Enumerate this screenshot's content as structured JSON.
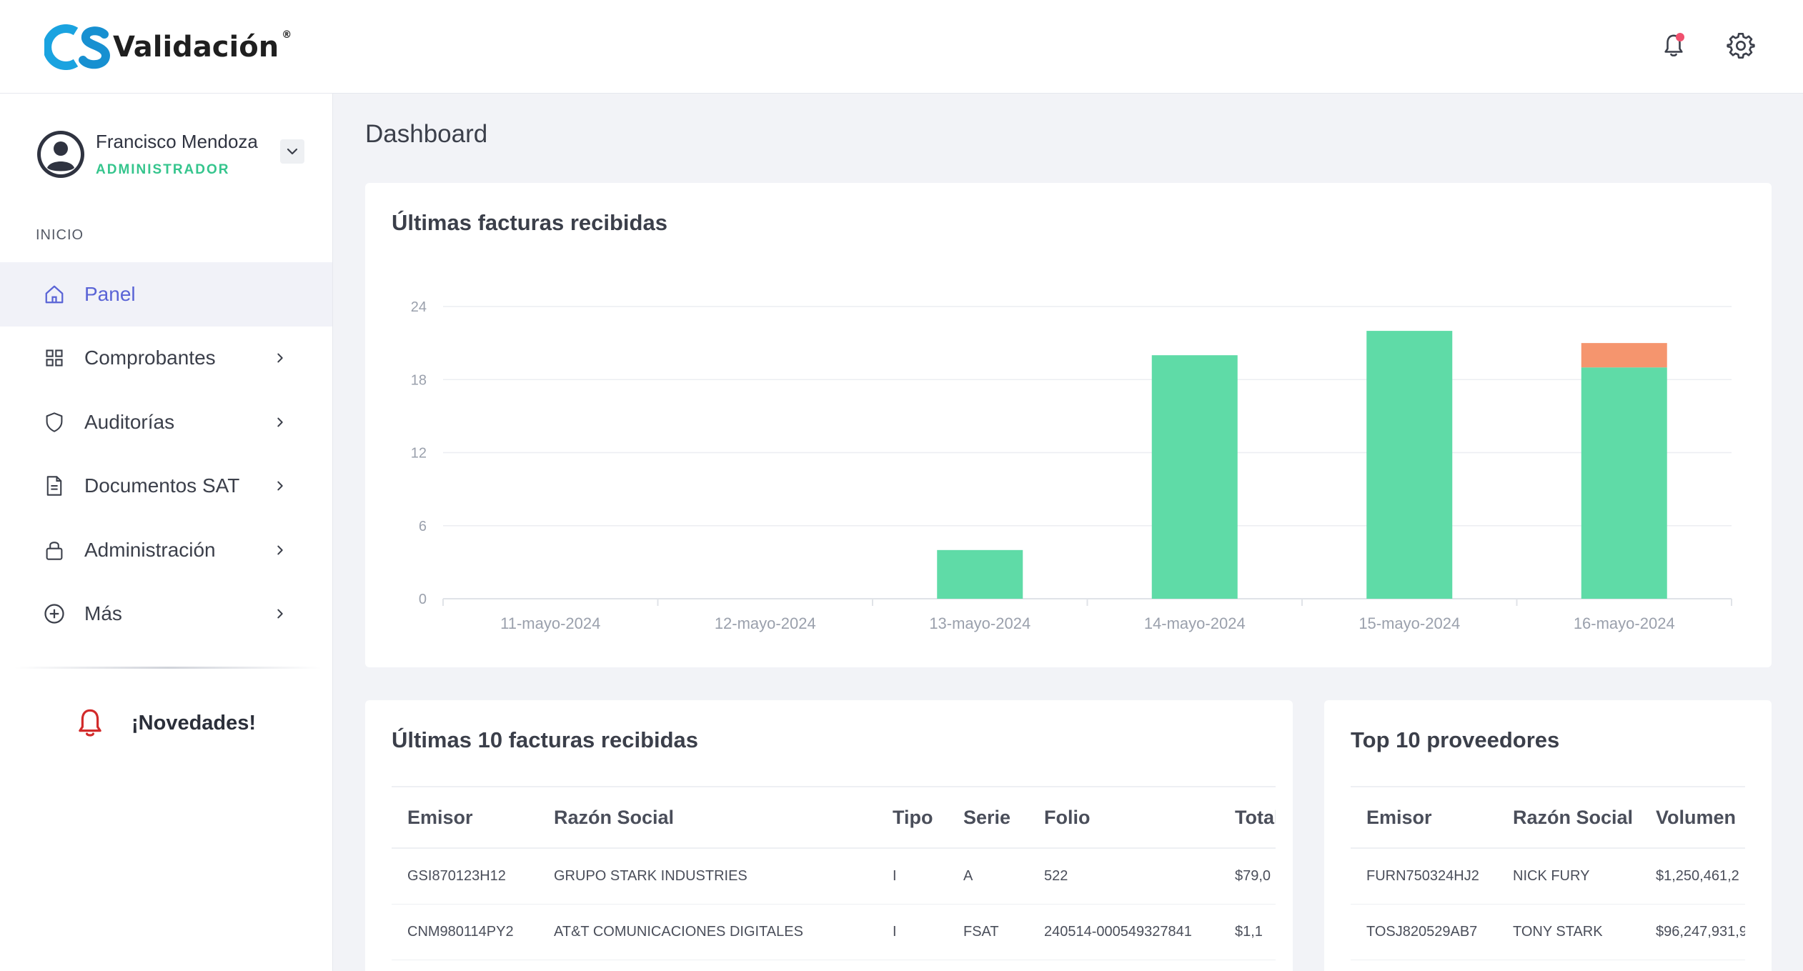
{
  "app": {
    "logo_mark": "CS",
    "logo_text": "Validación",
    "logo_reg": "®"
  },
  "header": {
    "icons": [
      "bell-icon",
      "gear-icon"
    ],
    "notification_color": "#f0506e"
  },
  "user": {
    "name": "Francisco Mendoza",
    "role": "ADMINISTRADOR"
  },
  "sidebar": {
    "section_label": "INICIO",
    "items": [
      {
        "label": "Panel",
        "icon": "home-icon",
        "active": true
      },
      {
        "label": "Comprobantes",
        "icon": "grid-icon"
      },
      {
        "label": "Auditorías",
        "icon": "shield-icon"
      },
      {
        "label": "Documentos SAT",
        "icon": "document-icon"
      },
      {
        "label": "Administración",
        "icon": "lock-icon"
      },
      {
        "label": "Más",
        "icon": "plus-circle-icon"
      }
    ],
    "news_label": "¡Novedades!"
  },
  "main": {
    "page_title": "Dashboard"
  },
  "colors": {
    "accent": "#5a64d6",
    "green": "#5fdba7",
    "orange": "#f5956e",
    "role": "#35c58d"
  },
  "chart_data": {
    "type": "bar",
    "stacked": true,
    "title": "Últimas facturas recibidas",
    "categories": [
      "11-mayo-2024",
      "12-mayo-2024",
      "13-mayo-2024",
      "14-mayo-2024",
      "15-mayo-2024",
      "16-mayo-2024"
    ],
    "series": [
      {
        "color": "#5fdba7",
        "values": [
          0,
          0,
          4,
          20,
          22,
          19
        ]
      },
      {
        "color": "#f5956e",
        "values": [
          0,
          0,
          0,
          0,
          0,
          2
        ]
      }
    ],
    "yticks": [
      0,
      6,
      12,
      18,
      24
    ],
    "ylim": [
      0,
      24
    ],
    "grid": true
  },
  "facturas": {
    "title": "Últimas 10 facturas recibidas",
    "columns": [
      "Emisor",
      "Razón Social",
      "Tipo",
      "Serie",
      "Folio",
      "Total"
    ],
    "rows": [
      [
        "GSI870123H12",
        "GRUPO STARK INDUSTRIES",
        "I",
        "A",
        "522",
        "$79,0"
      ],
      [
        "CNM980114PY2",
        "AT&T COMUNICACIONES DIGITALES",
        "I",
        "FSAT",
        "240514-000549327841",
        "$1,1"
      ]
    ]
  },
  "proveedores": {
    "title": "Top 10 proveedores",
    "columns": [
      "Emisor",
      "Razón Social",
      "Volumen"
    ],
    "rows": [
      [
        "FURN750324HJ2",
        "NICK FURY",
        "$1,250,461,2"
      ],
      [
        "TOSJ820529AB7",
        "TONY STARK",
        "$96,247,931,9"
      ]
    ]
  }
}
